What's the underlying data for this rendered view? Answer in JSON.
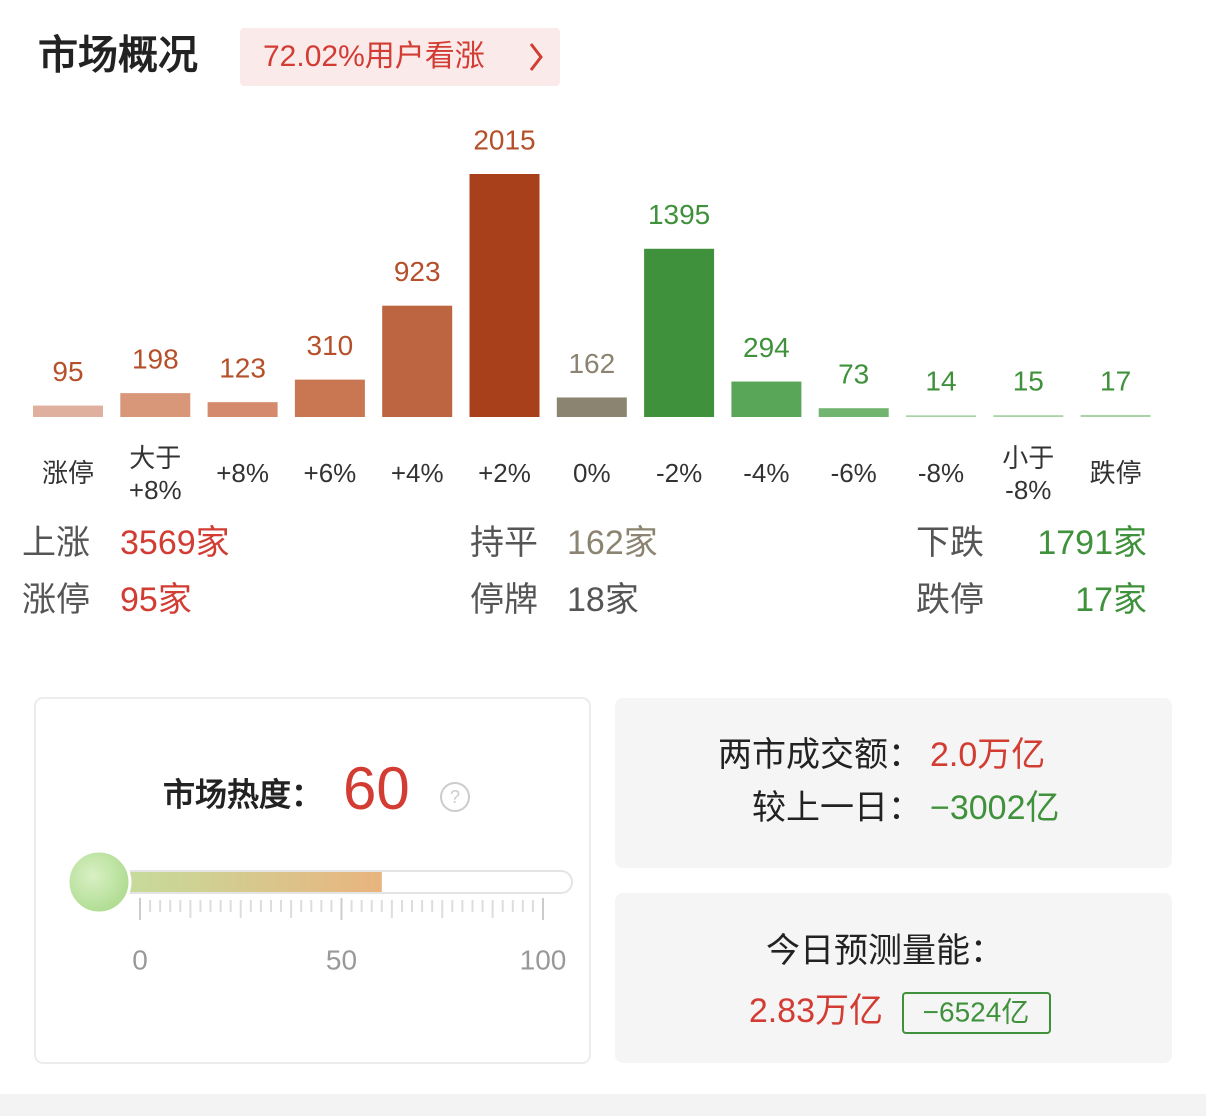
{
  "header": {
    "title": "市场概况",
    "badge": "72.02%用户看涨"
  },
  "distribution": {
    "type": "bar",
    "categories": [
      "涨停",
      "大于\n+8%",
      "+8%",
      "+6%",
      "+4%",
      "+2%",
      "0%",
      "-2%",
      "-4%",
      "-6%",
      "-8%",
      "小于\n-8%",
      "跌停"
    ],
    "values": [
      95,
      198,
      123,
      310,
      923,
      2015,
      162,
      1395,
      294,
      73,
      14,
      15,
      17
    ],
    "colors": [
      "#dfb09e",
      "#d9977a",
      "#d48a6c",
      "#c97652",
      "#bd6440",
      "#a8401b",
      "#8b8470",
      "#3f913b",
      "#5aa659",
      "#72b570",
      "#a8d3a6",
      "#a8d3a6",
      "#a8d3a6"
    ],
    "label_colors": [
      "#b5502a",
      "#b5502a",
      "#b5502a",
      "#b5502a",
      "#b5502a",
      "#b5502a",
      "#8b8470",
      "#3f913b",
      "#3f913b",
      "#3f913b",
      "#3f913b",
      "#3f913b",
      "#3f913b"
    ]
  },
  "stats": {
    "rows": [
      [
        {
          "label": "上涨",
          "value": "3569家",
          "color": "#d23c33"
        },
        {
          "label": "持平",
          "value": "162家",
          "color": "#8b8470"
        },
        {
          "label": "下跌",
          "value": "1791家",
          "color": "#3f913b"
        }
      ],
      [
        {
          "label": "涨停",
          "value": "95家",
          "color": "#d23c33"
        },
        {
          "label": "停牌",
          "value": "18家",
          "color": "#555555"
        },
        {
          "label": "跌停",
          "value": "17家",
          "color": "#3f913b"
        }
      ]
    ]
  },
  "heat": {
    "label": "市场热度：",
    "value": 60,
    "lim": [
      0,
      100
    ],
    "ticks": [
      0,
      50,
      100
    ]
  },
  "turnover": {
    "label": "两市成交额：",
    "value": "2.0万亿",
    "change_label": "较上一日：",
    "change": "−3002亿"
  },
  "forecast": {
    "label": "今日预测量能：",
    "value": "2.83万亿",
    "change": "−6524亿"
  }
}
